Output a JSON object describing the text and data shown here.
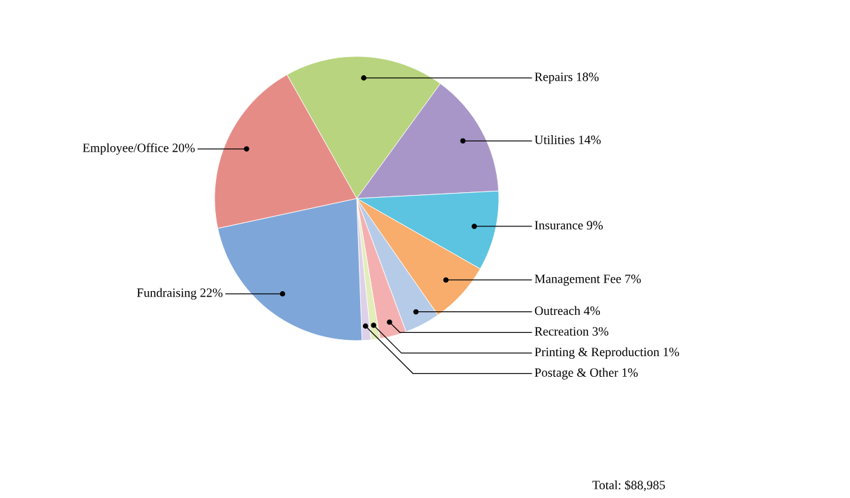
{
  "chart_data": {
    "type": "pie",
    "categories": [
      "Repairs",
      "Utilities",
      "Insurance",
      "Management Fee",
      "Outreach",
      "Recreation",
      "Printing & Reproduction",
      "Postage & Other",
      "Fundraising",
      "Employee/Office"
    ],
    "values": [
      18,
      14,
      9,
      7,
      4,
      3,
      1,
      1,
      22,
      20
    ],
    "value_labels": [
      "18%",
      "14%",
      "9%",
      "7%",
      "4%",
      "3%",
      "1%",
      "1%",
      "22%",
      "20%"
    ],
    "colors": [
      "#b8d47e",
      "#a996c8",
      "#5cc4e0",
      "#f8ad6c",
      "#b6cbe8",
      "#f4b0b0",
      "#e2edba",
      "#ddd0e8",
      "#7ea6d9",
      "#e68c87"
    ],
    "annotations": [
      "Total: $88,985"
    ],
    "legend": false
  }
}
